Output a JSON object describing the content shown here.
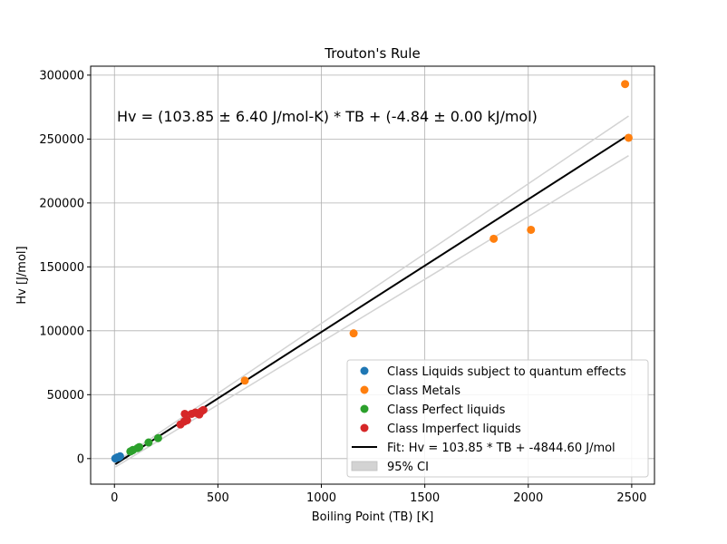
{
  "chart_data": {
    "type": "scatter",
    "title": "Trouton's Rule",
    "xlabel": "Boiling Point (TB) [K]",
    "ylabel": "Hv [J/mol]",
    "xlim": [
      -115,
      2610
    ],
    "ylim": [
      -20000,
      307000
    ],
    "xticks": [
      0,
      500,
      1000,
      1500,
      2000,
      2500
    ],
    "yticks": [
      0,
      50000,
      100000,
      150000,
      200000,
      250000,
      300000
    ],
    "grid": true,
    "legend_position": "lower-right",
    "annotation": "Hv = (103.85 ± 6.40 J/mol-K) * TB + (-4.84 ± 0.00 kJ/mol)",
    "series": [
      {
        "name": "Class Liquids subject to quantum effects",
        "color": "#1f77b4",
        "points": [
          [
            4.2,
            84
          ],
          [
            14,
            900
          ],
          [
            20,
            900
          ],
          [
            27,
            1800
          ]
        ]
      },
      {
        "name": "Class Metals",
        "color": "#ff7f0e",
        "points": [
          [
            630,
            61000
          ],
          [
            1156,
            98000
          ],
          [
            1833,
            172000
          ],
          [
            2013,
            179000
          ],
          [
            2468,
            293000
          ],
          [
            2485,
            251000
          ]
        ]
      },
      {
        "name": "Class Perfect liquids",
        "color": "#2ca02c",
        "points": [
          [
            77,
            5600
          ],
          [
            87,
            6500
          ],
          [
            90,
            6800
          ],
          [
            112,
            8200
          ],
          [
            120,
            9000
          ],
          [
            165,
            12600
          ],
          [
            211,
            16000
          ]
        ]
      },
      {
        "name": "Class Imperfect liquids",
        "color": "#d62728",
        "points": [
          [
            319,
            26700
          ],
          [
            337,
            29000
          ],
          [
            340,
            35000
          ],
          [
            351,
            30000
          ],
          [
            373,
            35000
          ],
          [
            391,
            36000
          ],
          [
            400,
            35500
          ],
          [
            410,
            34500
          ],
          [
            420,
            37000
          ],
          [
            430,
            38000
          ]
        ]
      }
    ],
    "fit": {
      "name": "Fit: Hv = 103.85 * TB + -4844.60 J/mol",
      "color": "#000000",
      "slope": 103.85,
      "intercept": -4844.6,
      "x_range": [
        4.2,
        2485
      ],
      "ci_upper": [
        [
          4.2,
          -3100
        ],
        [
          2485,
          268000
        ]
      ],
      "ci_lower": [
        [
          4.2,
          -6600
        ],
        [
          2485,
          237000
        ]
      ]
    },
    "ci_legend": "95% CI",
    "ci_color": "#d3d3d3"
  }
}
